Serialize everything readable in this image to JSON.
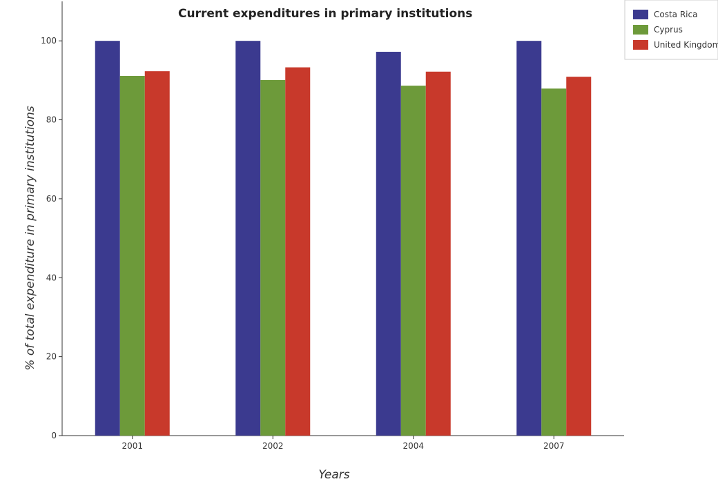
{
  "chart_data": {
    "type": "bar",
    "title": "Current expenditures in primary institutions",
    "xlabel": "Years",
    "ylabel": "% of total expenditure in primary institutions",
    "categories": [
      "2001",
      "2002",
      "2004",
      "2007"
    ],
    "series": [
      {
        "name": "Costa Rica",
        "color": "#3b3a8f",
        "values": [
          100.0,
          100.0,
          97.23,
          100.0
        ]
      },
      {
        "name": "Cyprus",
        "color": "#6d9a3a",
        "values": [
          91.11,
          90.07,
          88.65,
          87.91
        ]
      },
      {
        "name": "United Kingdom",
        "color": "#c8392b",
        "values": [
          92.31,
          93.29,
          92.2,
          90.91
        ]
      }
    ],
    "ylim": [
      0,
      110
    ],
    "yticks": [
      0,
      20,
      40,
      60,
      80,
      100
    ],
    "legend_position": "top-right",
    "grid": false
  }
}
